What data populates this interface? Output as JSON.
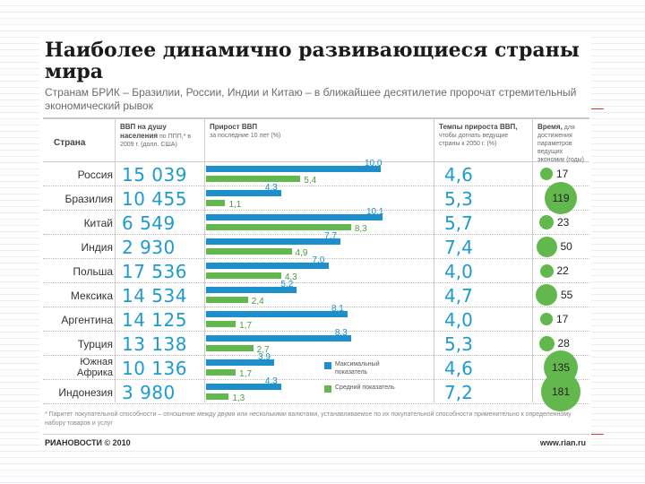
{
  "title": "Наиболее динамично развивающиеся страны мира",
  "subtitle": "Странам БРИК – Бразилии, России, Индии и Китаю – в ближайшее десятилетие пророчат стремительный экономический рывок",
  "headers": {
    "country": "Страна",
    "gdp_bold": "ВВП на душу населения",
    "gdp_rest": "по ППП,* в 2009 г. (долл. США)",
    "growth_bold": "Прирост ВВП",
    "growth_rest": "за последние 10 лет (%)",
    "rate_bold": "Темпы прироста ВВП,",
    "rate_rest": "чтобы догнать ведущие страны к 2050 г. (%)",
    "time_bold": "Время,",
    "time_rest": "для достижения параметров ведущих экономик (годы)"
  },
  "legend": {
    "max_label": "Максимальный показатель",
    "avg_label": "Средний показатель",
    "max_color": "#1e8fcd",
    "avg_color": "#62b84d"
  },
  "chart_data": {
    "type": "table",
    "title": "Наиболее динамично развивающиеся страны мира",
    "columns": [
      "Страна",
      "ВВП на душу населения по ППП в 2009 г. (долл. США)",
      "Прирост ВВП за последние 10 лет (%) — максимальный",
      "Прирост ВВП за последние 10 лет (%) — средний",
      "Темпы прироста ВВП к 2050 г. (%)",
      "Время (годы)"
    ],
    "rows": [
      {
        "country": "Россия",
        "gdp": "15 039",
        "growth_max": 10.0,
        "growth_max_label": "10,0",
        "growth_avg": 5.4,
        "growth_avg_label": "5,4",
        "rate": "4,6",
        "years": 17
      },
      {
        "country": "Бразилия",
        "gdp": "10 455",
        "growth_max": 4.3,
        "growth_max_label": "4,3",
        "growth_avg": 1.1,
        "growth_avg_label": "1,1",
        "rate": "5,3",
        "years": 119
      },
      {
        "country": "Китай",
        "gdp": "6 549",
        "growth_max": 10.1,
        "growth_max_label": "10,1",
        "growth_avg": 8.3,
        "growth_avg_label": "8,3",
        "rate": "5,7",
        "years": 23
      },
      {
        "country": "Индия",
        "gdp": "2 930",
        "growth_max": 7.7,
        "growth_max_label": "7,7",
        "growth_avg": 4.9,
        "growth_avg_label": "4,9",
        "rate": "7,4",
        "years": 50
      },
      {
        "country": "Польша",
        "gdp": "17 536",
        "growth_max": 7.0,
        "growth_max_label": "7,0",
        "growth_avg": 4.3,
        "growth_avg_label": "4,3",
        "rate": "4,0",
        "years": 22
      },
      {
        "country": "Мексика",
        "gdp": "14 534",
        "growth_max": 5.2,
        "growth_max_label": "5,2",
        "growth_avg": 2.4,
        "growth_avg_label": "2,4",
        "rate": "4,7",
        "years": 55
      },
      {
        "country": "Аргентина",
        "gdp": "14 125",
        "growth_max": 8.1,
        "growth_max_label": "8,1",
        "growth_avg": 1.7,
        "growth_avg_label": "1,7",
        "rate": "4,0",
        "years": 17
      },
      {
        "country": "Турция",
        "gdp": "13 138",
        "growth_max": 8.3,
        "growth_max_label": "8,3",
        "growth_avg": 2.7,
        "growth_avg_label": "2,7",
        "rate": "5,3",
        "years": 28
      },
      {
        "country": "Южная Африка",
        "gdp": "10 136",
        "growth_max": 3.9,
        "growth_max_label": "3,9",
        "growth_avg": 1.7,
        "growth_avg_label": "1,7",
        "rate": "4,6",
        "years": 135
      },
      {
        "country": "Индонезия",
        "gdp": "3 980",
        "growth_max": 4.3,
        "growth_max_label": "4,3",
        "growth_avg": 1.3,
        "growth_avg_label": "1,3",
        "rate": "7,2",
        "years": 181
      }
    ]
  },
  "footnote": "* Паритет покупательной способности – отношение между двумя или несколькими валютами, устанавливаемое по их покупательной способности применительно к определенному набору товаров и услуг",
  "footer": {
    "logo_ria": "РИА",
    "logo_news": "НОВОСТИ",
    "copyright": "© 2010",
    "site": "www.rian.ru"
  }
}
